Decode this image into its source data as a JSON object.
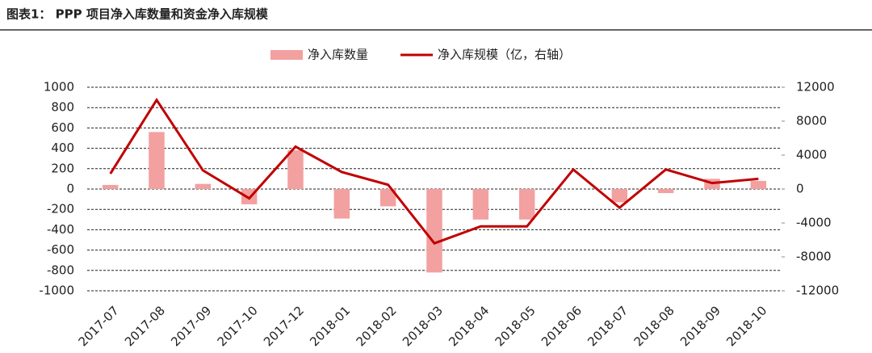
{
  "chart_data": {
    "type": "bar-line",
    "title": "图表1： PPP 项目净入库数量和资金净入库规模",
    "categories": [
      "2017-07",
      "2017-08",
      "2017-09",
      "2017-10",
      "2017-12",
      "2018-01",
      "2018-02",
      "2018-03",
      "2018-04",
      "2018-05",
      "2018-06",
      "2018-07",
      "2018-08",
      "2018-09",
      "2018-10"
    ],
    "series": [
      {
        "name": "净入库数量",
        "type": "bar",
        "color": "#f3a0a0",
        "values": [
          40,
          560,
          50,
          -150,
          380,
          -290,
          -170,
          -820,
          -300,
          -300,
          0,
          -130,
          -40,
          100,
          80
        ]
      },
      {
        "name": "净入库规模（亿，右轴）",
        "type": "line",
        "axis": "y2",
        "color": "#c00000",
        "values": [
          1800,
          10500,
          2200,
          -1100,
          5000,
          2000,
          500,
          -6400,
          -4400,
          -4400,
          2300,
          -2200,
          2300,
          700,
          1200
        ]
      }
    ],
    "ylim": [
      -1000,
      1000
    ],
    "yticks": [
      -1000,
      -800,
      -600,
      -400,
      -200,
      0,
      200,
      400,
      600,
      800,
      1000
    ],
    "y2lim": [
      -12000,
      12000
    ],
    "y2ticks": [
      -12000,
      -8000,
      -4000,
      0,
      4000,
      8000,
      12000
    ],
    "grid": true,
    "legend": "top"
  }
}
